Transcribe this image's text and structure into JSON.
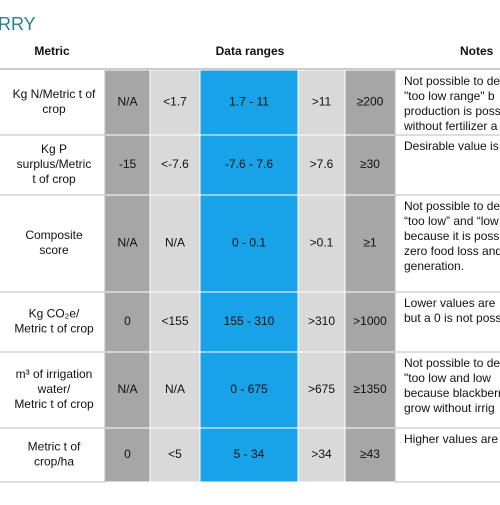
{
  "header": {
    "title": "RRY",
    "columns": [
      "Metric",
      "Data ranges",
      "Notes"
    ]
  },
  "table": {
    "rows": [
      {
        "metric": [
          "Kg N/Metric t of",
          "crop"
        ],
        "ranges": [
          "N/A",
          "<1.7",
          "1.7 - 11",
          ">11",
          "≥200"
        ],
        "notes": [
          "Not possible to de",
          "\"too low range\" b",
          "production is poss",
          "without fertilizer a"
        ]
      },
      {
        "metric": [
          "Kg P",
          "surplus/Metric",
          "t of crop"
        ],
        "ranges": [
          "-15",
          "<-7.6",
          "-7.6 - 7.6",
          ">7.6",
          "≥30"
        ],
        "notes": [
          "Desirable value is"
        ]
      },
      {
        "metric": [
          "Composite",
          "score"
        ],
        "ranges": [
          "N/A",
          "N/A",
          "0 - 0.1",
          ">0.1",
          "≥1"
        ],
        "notes": [
          "Not possible to de",
          "“too low” and “low",
          "because it is possi",
          "zero food loss and",
          "generation."
        ]
      },
      {
        "metric": [
          "Kg CO₂e/",
          "Metric t of crop"
        ],
        "ranges": [
          "0",
          "<155",
          "155 - 310",
          ">310",
          ">1000"
        ],
        "notes": [
          "Lower values are",
          "but a 0 is not poss"
        ]
      },
      {
        "metric": [
          "m³ of irrigation",
          "water/",
          "Metric t of crop"
        ],
        "ranges": [
          "N/A",
          "N/A",
          "0 - 675",
          ">675",
          "≥1350"
        ],
        "notes": [
          "Not possible to de",
          "\"too low and low",
          "because blackberr",
          "grow without irrig"
        ]
      },
      {
        "metric": [
          "Metric t of",
          "crop/ha"
        ],
        "ranges": [
          "0",
          "<5",
          "5 - 34",
          ">34",
          "≥43"
        ],
        "notes": [
          "Higher values are"
        ]
      }
    ]
  }
}
